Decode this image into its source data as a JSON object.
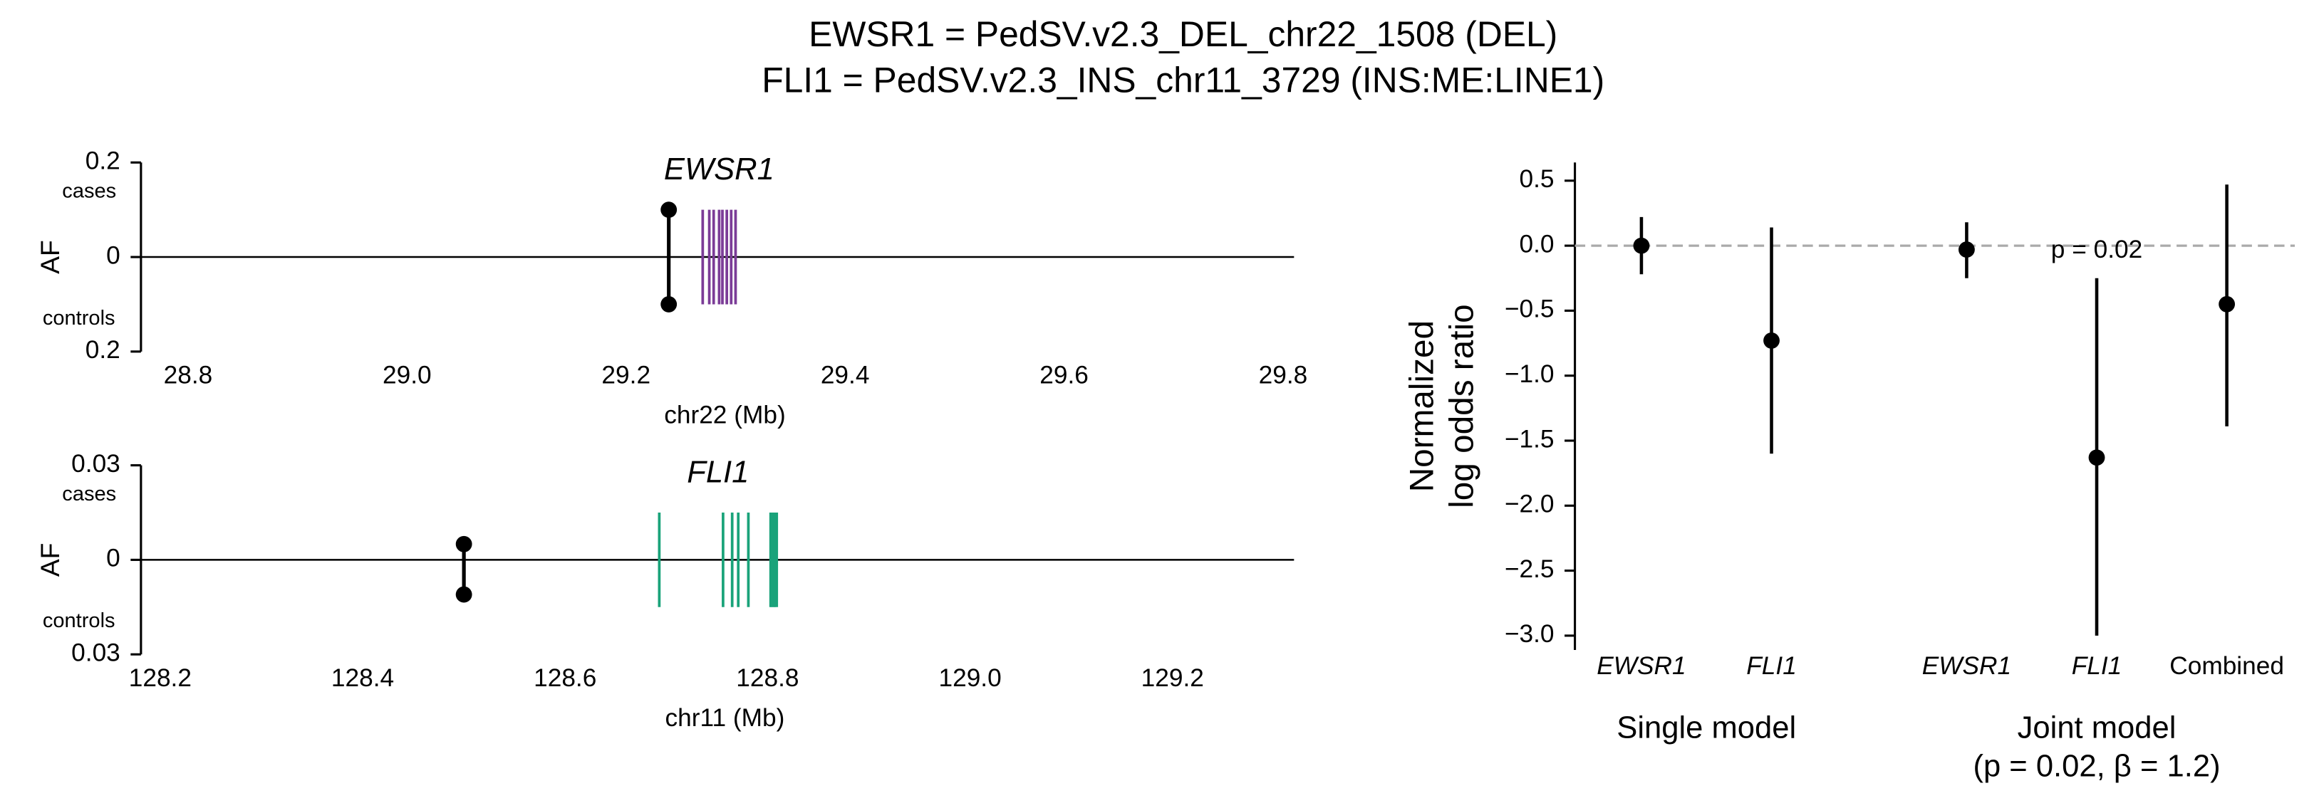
{
  "title": [
    "EWSR1 = PedSV.v2.3_DEL_chr22_1508 (DEL)",
    "FLI1 = PedSV.v2.3_INS_chr11_3729 (INS:ME:LINE1)"
  ],
  "chart_data": [
    {
      "type": "lollipop",
      "gene": "EWSR1",
      "xlabel": "chr22 (Mb)",
      "ylabel": "AF",
      "cases_label": "cases",
      "controls_label": "controls",
      "x": [
        29.239
      ],
      "cases": [
        0.1
      ],
      "controls": [
        0.1
      ],
      "color": "#000000",
      "exons": [
        29.27,
        29.276,
        29.28,
        29.285,
        29.288,
        29.292,
        29.296,
        29.3
      ],
      "exon_color": "#7b3c97",
      "xlim": [
        28.757,
        29.81
      ],
      "xticks": [
        28.8,
        {
          "value": 29.0,
          "label": "29.0"
        },
        29.2,
        29.4,
        29.6,
        29.8
      ],
      "ylim": [
        -0.2,
        0.2
      ],
      "yticks": [
        0.2,
        0,
        {
          "value": -0.2,
          "label": "0.2"
        }
      ]
    },
    {
      "type": "lollipop",
      "gene": "FLI1",
      "xlabel": "chr11 (Mb)",
      "ylabel": "AF",
      "cases_label": "cases",
      "controls_label": "controls",
      "x": [
        128.5
      ],
      "cases": [
        0.005
      ],
      "controls": [
        0.011
      ],
      "color": "#000000",
      "exons": [
        128.693,
        128.756,
        128.765,
        128.771,
        128.781,
        128.803,
        128.804,
        128.806,
        128.807,
        128.809
      ],
      "exon_color": "#1aa37a",
      "xlim": [
        128.181,
        129.32
      ],
      "xticks": [
        128.2,
        128.4,
        128.6,
        128.8,
        {
          "value": 129.0,
          "label": "129.0"
        },
        129.2
      ],
      "ylim": [
        -0.03,
        0.03
      ],
      "yticks": [
        0.03,
        0,
        {
          "value": -0.03,
          "label": "0.03"
        }
      ]
    },
    {
      "type": "errorbar",
      "ylabel": [
        "Normalized",
        "log odds ratio"
      ],
      "annotation": "p = 0.02",
      "color": "#000000",
      "reference_line": 0,
      "reference_color": "#aaaaaa",
      "groups": [
        {
          "name": "Single model",
          "categories": [
            "EWSR1",
            "FLI1"
          ],
          "italic": [
            true,
            true
          ],
          "values": [
            0.0,
            -0.73
          ],
          "ci_low": [
            -0.22,
            -1.6
          ],
          "ci_high": [
            0.22,
            0.14
          ]
        },
        {
          "name": "Joint model",
          "note": "(p = 0.02, β = 1.2)",
          "categories": [
            "EWSR1",
            "FLI1",
            "Combined"
          ],
          "italic": [
            true,
            true,
            false
          ],
          "values": [
            -0.03,
            -1.63,
            -0.45
          ],
          "ci_low": [
            -0.25,
            -3.0,
            -1.39
          ],
          "ci_high": [
            0.18,
            -0.25,
            0.47
          ]
        }
      ],
      "ylim": [
        -3.11,
        0.64
      ],
      "yticks": [
        0.5,
        {
          "value": 0,
          "label": "0.0"
        },
        {
          "value": -0.5,
          "label": "−0.5"
        },
        {
          "value": -1.0,
          "label": "−1.0"
        },
        {
          "value": -1.5,
          "label": "−1.5"
        },
        {
          "value": -2.0,
          "label": "−2.0"
        },
        {
          "value": -2.5,
          "label": "−2.5"
        },
        {
          "value": -3.0,
          "label": "−3.0"
        }
      ]
    }
  ]
}
